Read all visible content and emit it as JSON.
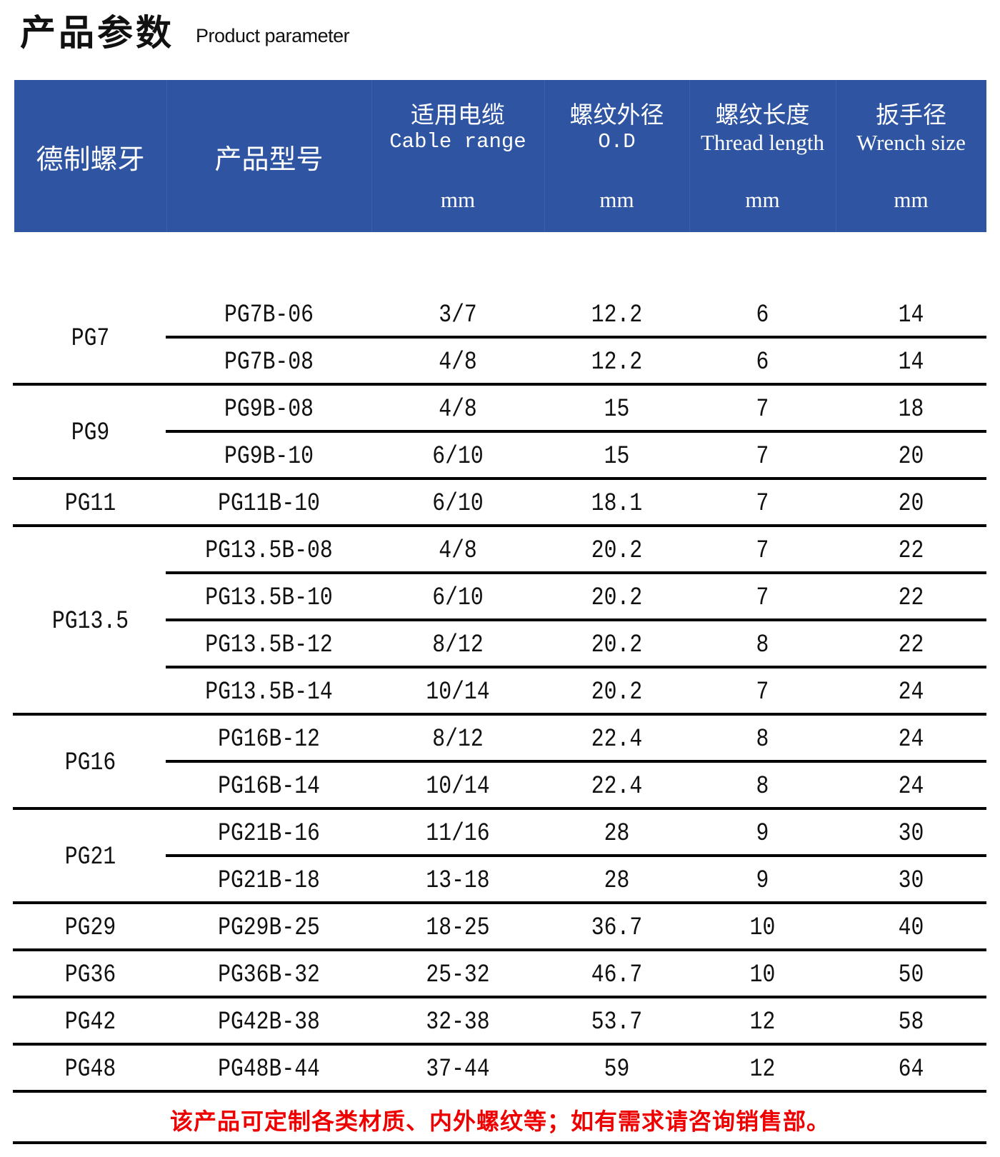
{
  "title": {
    "cn": "产品参数",
    "en": "Product parameter"
  },
  "header": {
    "thread": "德制螺牙",
    "model": "产品型号",
    "cable": {
      "cn": "适用电缆",
      "en": "Cable range",
      "unit": "mm"
    },
    "od": {
      "cn": "螺纹外径",
      "en": "O.D",
      "unit": "mm"
    },
    "thread_length": {
      "cn": "螺纹长度",
      "en": "Thread length",
      "unit": "mm"
    },
    "wrench": {
      "cn": "扳手径",
      "en": "Wrench size",
      "unit": "mm"
    }
  },
  "colors": {
    "header_bg": "#2e54a2",
    "note": "#ee0000"
  },
  "groups": [
    {
      "thread": "PG7",
      "rows": [
        {
          "model": "PG7B-06",
          "cable": "3/7",
          "od": "12.2",
          "length": "6",
          "wrench": "14"
        },
        {
          "model": "PG7B-08",
          "cable": "4/8",
          "od": "12.2",
          "length": "6",
          "wrench": "14"
        }
      ]
    },
    {
      "thread": "PG9",
      "rows": [
        {
          "model": "PG9B-08",
          "cable": "4/8",
          "od": "15",
          "length": "7",
          "wrench": "18"
        },
        {
          "model": "PG9B-10",
          "cable": "6/10",
          "od": "15",
          "length": "7",
          "wrench": "20"
        }
      ]
    },
    {
      "thread": "PG11",
      "rows": [
        {
          "model": "PG11B-10",
          "cable": "6/10",
          "od": "18.1",
          "length": "7",
          "wrench": "20"
        }
      ]
    },
    {
      "thread": "PG13.5",
      "rows": [
        {
          "model": "PG13.5B-08",
          "cable": "4/8",
          "od": "20.2",
          "length": "7",
          "wrench": "22"
        },
        {
          "model": "PG13.5B-10",
          "cable": "6/10",
          "od": "20.2",
          "length": "7",
          "wrench": "22"
        },
        {
          "model": "PG13.5B-12",
          "cable": "8/12",
          "od": "20.2",
          "length": "8",
          "wrench": "22"
        },
        {
          "model": "PG13.5B-14",
          "cable": "10/14",
          "od": "20.2",
          "length": "7",
          "wrench": "24"
        }
      ]
    },
    {
      "thread": "PG16",
      "rows": [
        {
          "model": "PG16B-12",
          "cable": "8/12",
          "od": "22.4",
          "length": "8",
          "wrench": "24"
        },
        {
          "model": "PG16B-14",
          "cable": "10/14",
          "od": "22.4",
          "length": "8",
          "wrench": "24"
        }
      ]
    },
    {
      "thread": "PG21",
      "rows": [
        {
          "model": "PG21B-16",
          "cable": "11/16",
          "od": "28",
          "length": "9",
          "wrench": "30"
        },
        {
          "model": "PG21B-18",
          "cable": "13-18",
          "od": "28",
          "length": "9",
          "wrench": "30"
        }
      ]
    },
    {
      "thread": "PG29",
      "rows": [
        {
          "model": "PG29B-25",
          "cable": "18-25",
          "od": "36.7",
          "length": "10",
          "wrench": "40"
        }
      ]
    },
    {
      "thread": "PG36",
      "rows": [
        {
          "model": "PG36B-32",
          "cable": "25-32",
          "od": "46.7",
          "length": "10",
          "wrench": "50"
        }
      ]
    },
    {
      "thread": "PG42",
      "rows": [
        {
          "model": "PG42B-38",
          "cable": "32-38",
          "od": "53.7",
          "length": "12",
          "wrench": "58"
        }
      ]
    },
    {
      "thread": "PG48",
      "rows": [
        {
          "model": "PG48B-44",
          "cable": "37-44",
          "od": "59",
          "length": "12",
          "wrench": "64"
        }
      ]
    }
  ],
  "note": "该产品可定制各类材质、内外螺纹等；如有需求请咨询销售部。"
}
